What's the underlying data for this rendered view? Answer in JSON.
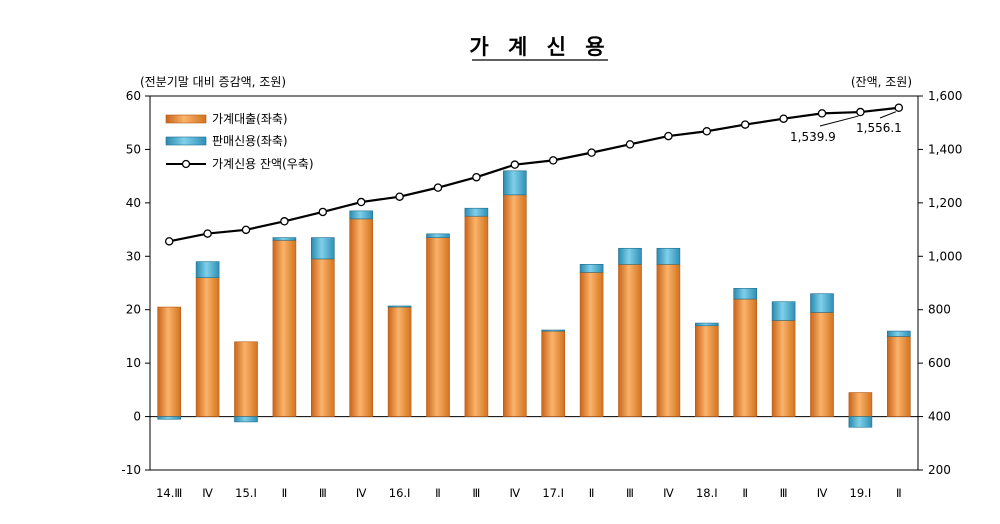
{
  "chart_data": {
    "type": "bar",
    "title": "가 계 신 용",
    "left_unit": "(전분기말 대비 증감액, 조원)",
    "right_unit": "(잔액, 조원)",
    "categories": [
      "14.Ⅲ",
      "Ⅳ",
      "15.Ⅰ",
      "Ⅱ",
      "Ⅲ",
      "Ⅳ",
      "16.Ⅰ",
      "Ⅱ",
      "Ⅲ",
      "Ⅳ",
      "17.Ⅰ",
      "Ⅱ",
      "Ⅲ",
      "Ⅳ",
      "18.Ⅰ",
      "Ⅱ",
      "Ⅲ",
      "Ⅳ",
      "19.Ⅰ",
      "Ⅱ"
    ],
    "ylim": [
      -10,
      60
    ],
    "y_ticks": [
      "-10",
      "0",
      "10",
      "20",
      "30",
      "40",
      "50",
      "60"
    ],
    "y2lim": [
      200,
      1600
    ],
    "y2_ticks": [
      "200",
      "400",
      "600",
      "800",
      "1,000",
      "1,200",
      "1,400",
      "1,600"
    ],
    "series": [
      {
        "name": "가계대출(좌축)",
        "kind": "bar",
        "axis": "left",
        "color": "#F0943C",
        "values": [
          20.5,
          26.0,
          14.0,
          33.0,
          29.5,
          37.0,
          20.5,
          33.5,
          37.5,
          41.5,
          16.0,
          27.0,
          28.5,
          28.5,
          17.0,
          22.0,
          18.0,
          19.5,
          4.5,
          15.0
        ]
      },
      {
        "name": "판매신용(좌축)",
        "kind": "bar",
        "axis": "left",
        "color": "#3FA7C9",
        "values": [
          -0.5,
          3.0,
          -1.0,
          0.5,
          4.0,
          1.5,
          0.2,
          0.7,
          1.5,
          4.5,
          0.2,
          1.5,
          3.0,
          3.0,
          0.5,
          2.0,
          3.5,
          3.5,
          -2.0,
          1.0
        ]
      },
      {
        "name": "가계신용 잔액(우축)",
        "kind": "line",
        "axis": "right",
        "color": "#000000",
        "values": [
          1056,
          1085,
          1099,
          1131,
          1166,
          1203,
          1223,
          1257,
          1296,
          1343,
          1359,
          1388,
          1419,
          1450,
          1468,
          1493,
          1515,
          1535,
          1539.9,
          1556.1
        ]
      }
    ],
    "annotations": [
      {
        "text": "1,539.9",
        "index": 18
      },
      {
        "text": "1,556.1",
        "index": 19
      }
    ],
    "legend_placement": "top-left",
    "grid": false
  }
}
